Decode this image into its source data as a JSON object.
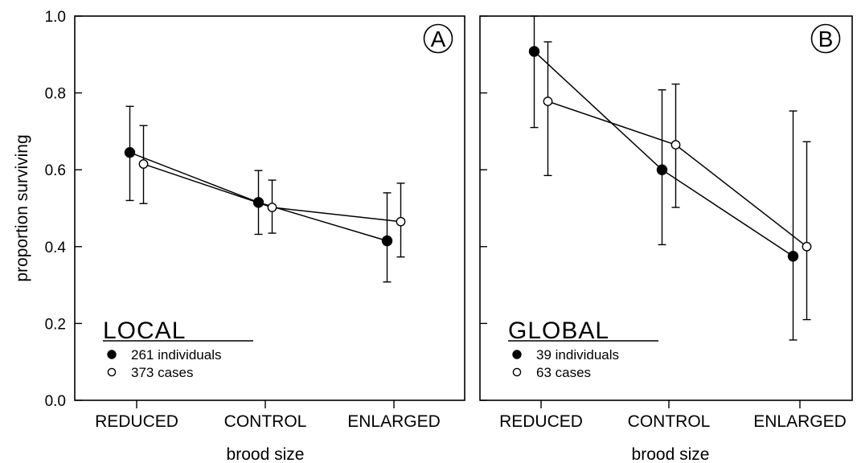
{
  "chart_data": [
    {
      "type": "line",
      "panel_label": "A",
      "categories": [
        "REDUCED",
        "CONTROL",
        "ENLARGED"
      ],
      "xlabel": "brood size",
      "ylabel": "proportion surviving",
      "ylim": [
        0.0,
        1.0
      ],
      "yticks": [
        "0.0",
        "0.2",
        "0.4",
        "0.6",
        "0.8",
        "1.0"
      ],
      "legend_title": "LOCAL",
      "legend_location": "bottom-left",
      "series": [
        {
          "name": "261 individuals",
          "marker": "filled-circle",
          "values": [
            0.645,
            0.515,
            0.415
          ],
          "err_low": [
            0.52,
            0.432,
            0.308
          ],
          "err_high": [
            0.765,
            0.598,
            0.54
          ]
        },
        {
          "name": "373 cases",
          "marker": "open-circle",
          "values": [
            0.615,
            0.502,
            0.465
          ],
          "err_low": [
            0.512,
            0.435,
            0.373
          ],
          "err_high": [
            0.715,
            0.573,
            0.565
          ]
        }
      ]
    },
    {
      "type": "line",
      "panel_label": "B",
      "categories": [
        "REDUCED",
        "CONTROL",
        "ENLARGED"
      ],
      "xlabel": "brood size",
      "ylabel": "",
      "ylim": [
        0.0,
        1.0
      ],
      "yticks": [],
      "legend_title": "GLOBAL",
      "legend_location": "bottom-left",
      "series": [
        {
          "name": "39 individuals",
          "marker": "filled-circle",
          "values": [
            0.908,
            0.6,
            0.375
          ],
          "err_low": [
            0.71,
            0.405,
            0.157
          ],
          "err_high": [
            1.0,
            0.808,
            0.753
          ]
        },
        {
          "name": "63 cases",
          "marker": "open-circle",
          "values": [
            0.778,
            0.665,
            0.4
          ],
          "err_low": [
            0.585,
            0.502,
            0.21
          ],
          "err_high": [
            0.933,
            0.823,
            0.673
          ]
        }
      ]
    }
  ]
}
